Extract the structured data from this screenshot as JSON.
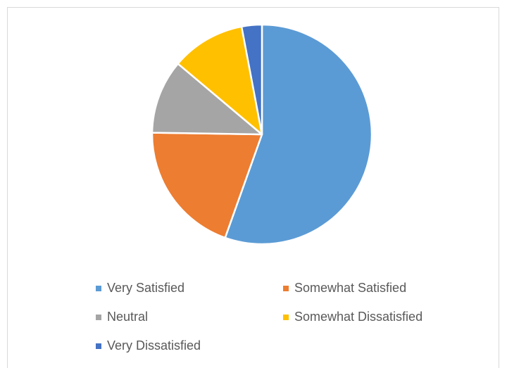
{
  "chart_data": {
    "type": "pie",
    "title": "",
    "categories": [
      "Very Satisfied",
      "Somewhat Satisfied",
      "Neutral",
      "Somewhat Dissatisfied",
      "Very Dissatisfied"
    ],
    "values": [
      56,
      20,
      11,
      11,
      3
    ],
    "colors": [
      "#5b9bd5",
      "#ed7d31",
      "#a5a5a5",
      "#ffc000",
      "#4472c4"
    ],
    "start_angle_deg": 0,
    "direction": "clockwise",
    "legend_position": "bottom",
    "slice_border_color": "#ffffff"
  }
}
